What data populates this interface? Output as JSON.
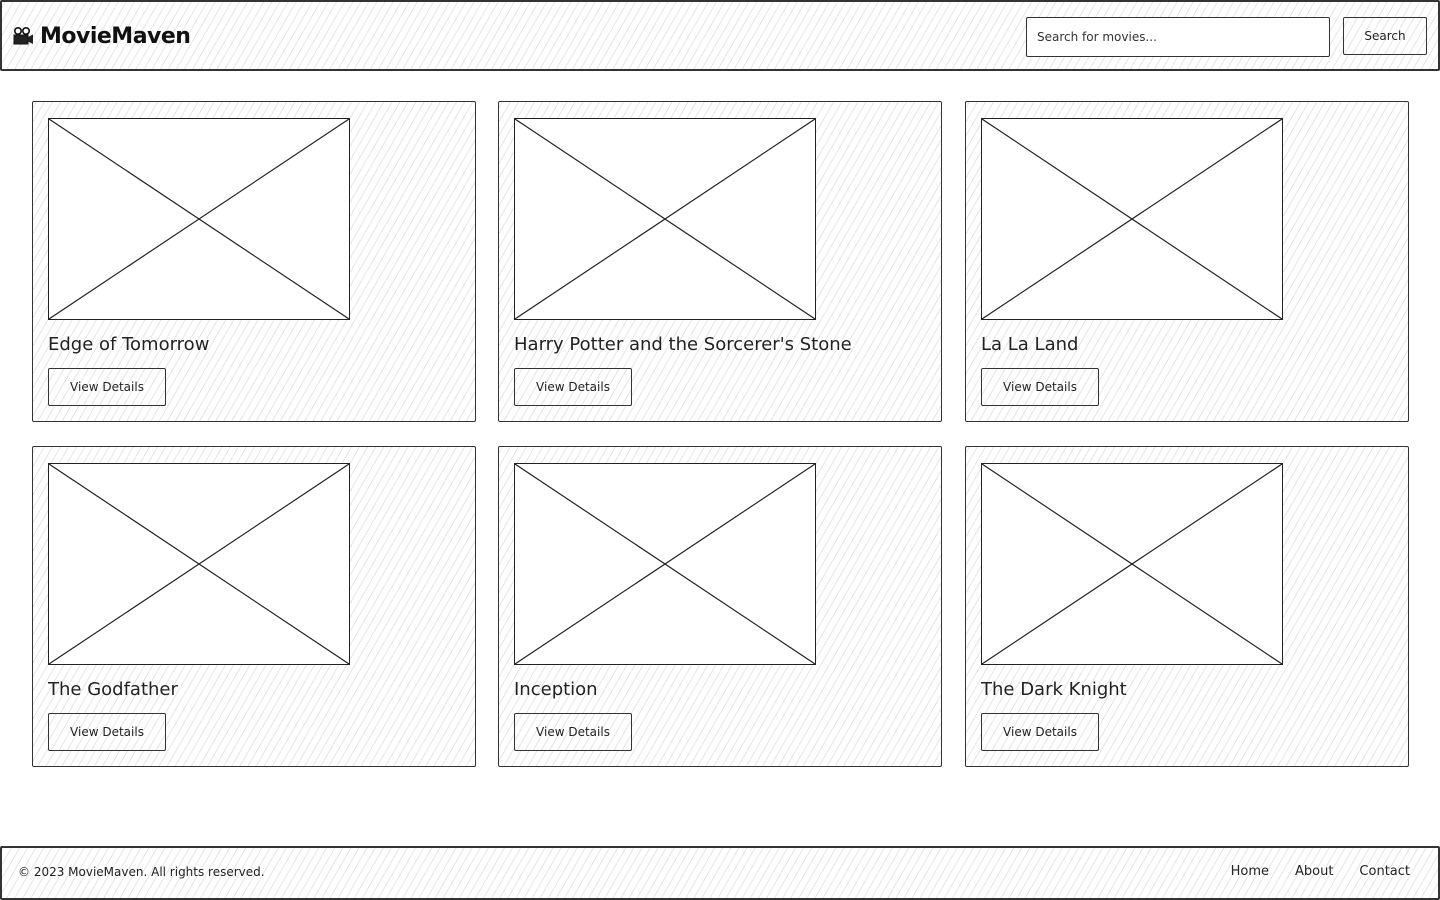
{
  "header": {
    "logo_icon": "film-camera-icon",
    "logo_text": "MovieMaven",
    "search_placeholder": "Search for movies...",
    "search_button": "Search"
  },
  "movies": [
    {
      "title": "Edge of Tomorrow",
      "button": "View Details"
    },
    {
      "title": "Harry Potter and the Sorcerer's Stone",
      "button": "View Details"
    },
    {
      "title": "La La Land",
      "button": "View Details"
    },
    {
      "title": "The Godfather",
      "button": "View Details"
    },
    {
      "title": "Inception",
      "button": "View Details"
    },
    {
      "title": "The Dark Knight",
      "button": "View Details"
    }
  ],
  "footer": {
    "copyright": "© 2023 MovieMaven. All rights reserved.",
    "links": [
      "Home",
      "About",
      "Contact"
    ]
  }
}
